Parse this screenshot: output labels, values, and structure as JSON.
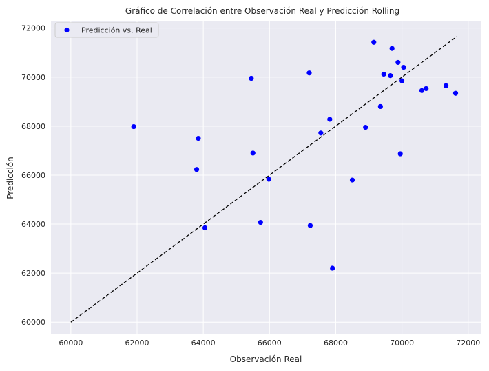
{
  "chart_data": {
    "type": "scatter",
    "title": "Gráfico de Correlación entre Observación Real y Predicción Rolling",
    "xlabel": "Observación Real",
    "ylabel": "Predicción",
    "xlim": [
      59400,
      72400
    ],
    "ylim": [
      59500,
      72300
    ],
    "xticks": [
      60000,
      62000,
      64000,
      66000,
      68000,
      70000,
      72000
    ],
    "yticks": [
      60000,
      62000,
      64000,
      66000,
      68000,
      70000,
      72000
    ],
    "grid": true,
    "legend": {
      "placement": "top-left",
      "entries": [
        "Predicción vs. Real"
      ]
    },
    "colors": {
      "points": "#0000ff",
      "background": "#eaeaf2",
      "grid": "#ffffff",
      "reference_line": "#000000"
    },
    "reference_line": {
      "x": [
        60000,
        71650
      ],
      "y": [
        60000,
        71650
      ],
      "style": "dashed"
    },
    "series": [
      {
        "name": "Predicción vs. Real",
        "points": [
          {
            "x": 61900,
            "y": 67980
          },
          {
            "x": 63800,
            "y": 66230
          },
          {
            "x": 63850,
            "y": 67500
          },
          {
            "x": 64050,
            "y": 63850
          },
          {
            "x": 65450,
            "y": 69950
          },
          {
            "x": 65500,
            "y": 66900
          },
          {
            "x": 65730,
            "y": 64070
          },
          {
            "x": 65980,
            "y": 65830
          },
          {
            "x": 67200,
            "y": 70170
          },
          {
            "x": 67230,
            "y": 63940
          },
          {
            "x": 67550,
            "y": 67720
          },
          {
            "x": 67820,
            "y": 68280
          },
          {
            "x": 67900,
            "y": 62200
          },
          {
            "x": 68500,
            "y": 65800
          },
          {
            "x": 68900,
            "y": 67950
          },
          {
            "x": 69150,
            "y": 71420
          },
          {
            "x": 69350,
            "y": 68800
          },
          {
            "x": 69450,
            "y": 70120
          },
          {
            "x": 69650,
            "y": 70060
          },
          {
            "x": 69700,
            "y": 71170
          },
          {
            "x": 69880,
            "y": 70600
          },
          {
            "x": 69950,
            "y": 66870
          },
          {
            "x": 70000,
            "y": 69850
          },
          {
            "x": 70050,
            "y": 70400
          },
          {
            "x": 70600,
            "y": 69450
          },
          {
            "x": 70730,
            "y": 69530
          },
          {
            "x": 71330,
            "y": 69650
          },
          {
            "x": 71620,
            "y": 69340
          }
        ]
      }
    ]
  }
}
